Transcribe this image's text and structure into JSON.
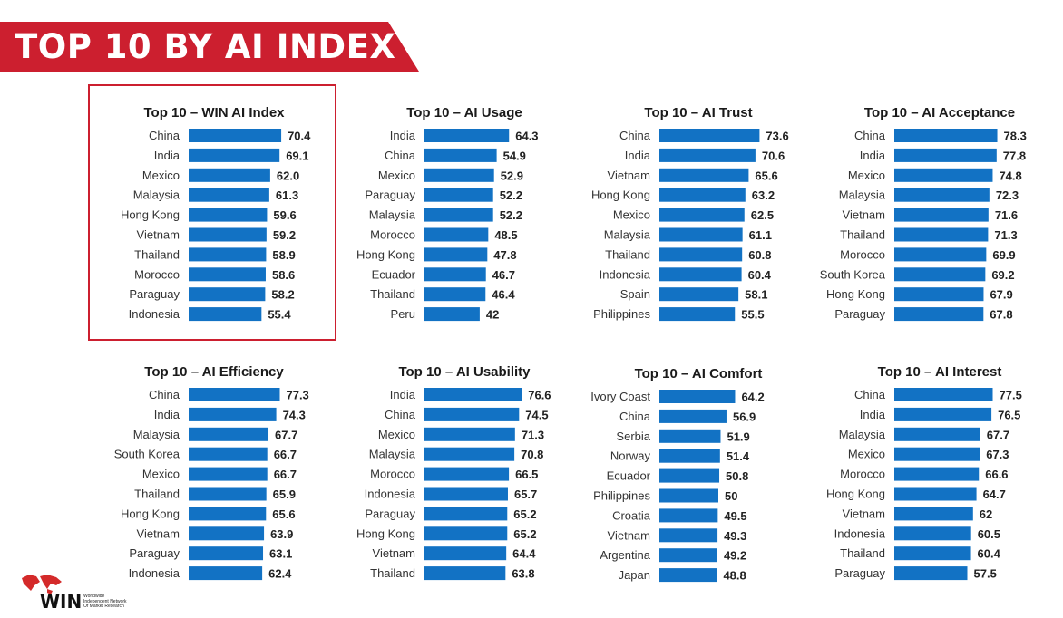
{
  "header": {
    "title": "TOP 10 BY AI INDEX",
    "banner_color": "#cc1f2f"
  },
  "logo": {
    "name": "WIN",
    "subtitle_line1": "Worldwide",
    "subtitle_line2": "Independent Network",
    "subtitle_line3": "Of Market Research",
    "icon": "world-map-icon"
  },
  "bar_color": "#1272c4",
  "chart_data": [
    {
      "type": "bar",
      "orientation": "horizontal",
      "title": "Top 10 – WIN AI Index",
      "highlighted": true,
      "categories": [
        "China",
        "India",
        "Mexico",
        "Malaysia",
        "Hong Kong",
        "Vietnam",
        "Thailand",
        "Morocco",
        "Paraguay",
        "Indonesia"
      ],
      "values": [
        70.4,
        69.1,
        62.0,
        61.3,
        59.6,
        59.2,
        58.9,
        58.6,
        58.2,
        55.4
      ],
      "labels": [
        "70.4",
        "69.1",
        "62.0",
        "61.3",
        "59.6",
        "59.2",
        "58.9",
        "58.6",
        "58.2",
        "55.4"
      ]
    },
    {
      "type": "bar",
      "orientation": "horizontal",
      "title": "Top 10 – AI Usage",
      "categories": [
        "India",
        "China",
        "Mexico",
        "Paraguay",
        "Malaysia",
        "Morocco",
        "Hong Kong",
        "Ecuador",
        "Thailand",
        "Peru"
      ],
      "values": [
        64.3,
        54.9,
        52.9,
        52.2,
        52.2,
        48.5,
        47.8,
        46.7,
        46.4,
        42
      ],
      "labels": [
        "64.3",
        "54.9",
        "52.9",
        "52.2",
        "52.2",
        "48.5",
        "47.8",
        "46.7",
        "46.4",
        "42"
      ]
    },
    {
      "type": "bar",
      "orientation": "horizontal",
      "title": "Top 10 – AI Trust",
      "categories": [
        "China",
        "India",
        "Vietnam",
        "Hong Kong",
        "Mexico",
        "Malaysia",
        "Thailand",
        "Indonesia",
        "Spain",
        "Philippines"
      ],
      "values": [
        73.6,
        70.6,
        65.6,
        63.2,
        62.5,
        61.1,
        60.8,
        60.4,
        58.1,
        55.5
      ],
      "labels": [
        "73.6",
        "70.6",
        "65.6",
        "63.2",
        "62.5",
        "61.1",
        "60.8",
        "60.4",
        "58.1",
        "55.5"
      ]
    },
    {
      "type": "bar",
      "orientation": "horizontal",
      "title": "Top 10 – AI Acceptance",
      "categories": [
        "China",
        "India",
        "Mexico",
        "Malaysia",
        "Vietnam",
        "Thailand",
        "Morocco",
        "South Korea",
        "Hong Kong",
        "Paraguay"
      ],
      "values": [
        78.3,
        77.8,
        74.8,
        72.3,
        71.6,
        71.3,
        69.9,
        69.2,
        67.9,
        67.8
      ],
      "labels": [
        "78.3",
        "77.8",
        "74.8",
        "72.3",
        "71.6",
        "71.3",
        "69.9",
        "69.2",
        "67.9",
        "67.8"
      ]
    },
    {
      "type": "bar",
      "orientation": "horizontal",
      "title": "Top 10 – AI Efficiency",
      "categories": [
        "China",
        "India",
        "Malaysia",
        "South Korea",
        "Mexico",
        "Thailand",
        "Hong Kong",
        "Vietnam",
        "Paraguay",
        "Indonesia"
      ],
      "values": [
        77.3,
        74.3,
        67.7,
        66.7,
        66.7,
        65.9,
        65.6,
        63.9,
        63.1,
        62.4
      ],
      "labels": [
        "77.3",
        "74.3",
        "67.7",
        "66.7",
        "66.7",
        "65.9",
        "65.6",
        "63.9",
        "63.1",
        "62.4"
      ]
    },
    {
      "type": "bar",
      "orientation": "horizontal",
      "title": "Top 10 – AI Usability",
      "categories": [
        "India",
        "China",
        "Mexico",
        "Malaysia",
        "Morocco",
        "Indonesia",
        "Paraguay",
        "Hong Kong",
        "Vietnam",
        "Thailand"
      ],
      "values": [
        76.6,
        74.5,
        71.3,
        70.8,
        66.5,
        65.7,
        65.2,
        65.2,
        64.4,
        63.8
      ],
      "labels": [
        "76.6",
        "74.5",
        "71.3",
        "70.8",
        "66.5",
        "65.7",
        "65.2",
        "65.2",
        "64.4",
        "63.8"
      ]
    },
    {
      "type": "bar",
      "orientation": "horizontal",
      "title": "Top 10 – AI Comfort",
      "categories": [
        "Ivory Coast",
        "China",
        "Serbia",
        "Norway",
        "Ecuador",
        "Philippines",
        "Croatia",
        "Vietnam",
        "Argentina",
        "Japan"
      ],
      "values": [
        64.2,
        56.9,
        51.9,
        51.4,
        50.8,
        50,
        49.5,
        49.3,
        49.2,
        48.8
      ],
      "labels": [
        "64.2",
        "56.9",
        "51.9",
        "51.4",
        "50.8",
        "50",
        "49.5",
        "49.3",
        "49.2",
        "48.8"
      ]
    },
    {
      "type": "bar",
      "orientation": "horizontal",
      "title": "Top 10 – AI Interest",
      "categories": [
        "China",
        "India",
        "Malaysia",
        "Mexico",
        "Morocco",
        "Hong Kong",
        "Vietnam",
        "Indonesia",
        "Thailand",
        "Paraguay"
      ],
      "values": [
        77.5,
        76.5,
        67.7,
        67.3,
        66.6,
        64.7,
        62,
        60.5,
        60.4,
        57.5
      ],
      "labels": [
        "77.5",
        "76.5",
        "67.7",
        "67.3",
        "66.6",
        "64.7",
        "62",
        "60.5",
        "60.4",
        "57.5"
      ]
    }
  ]
}
